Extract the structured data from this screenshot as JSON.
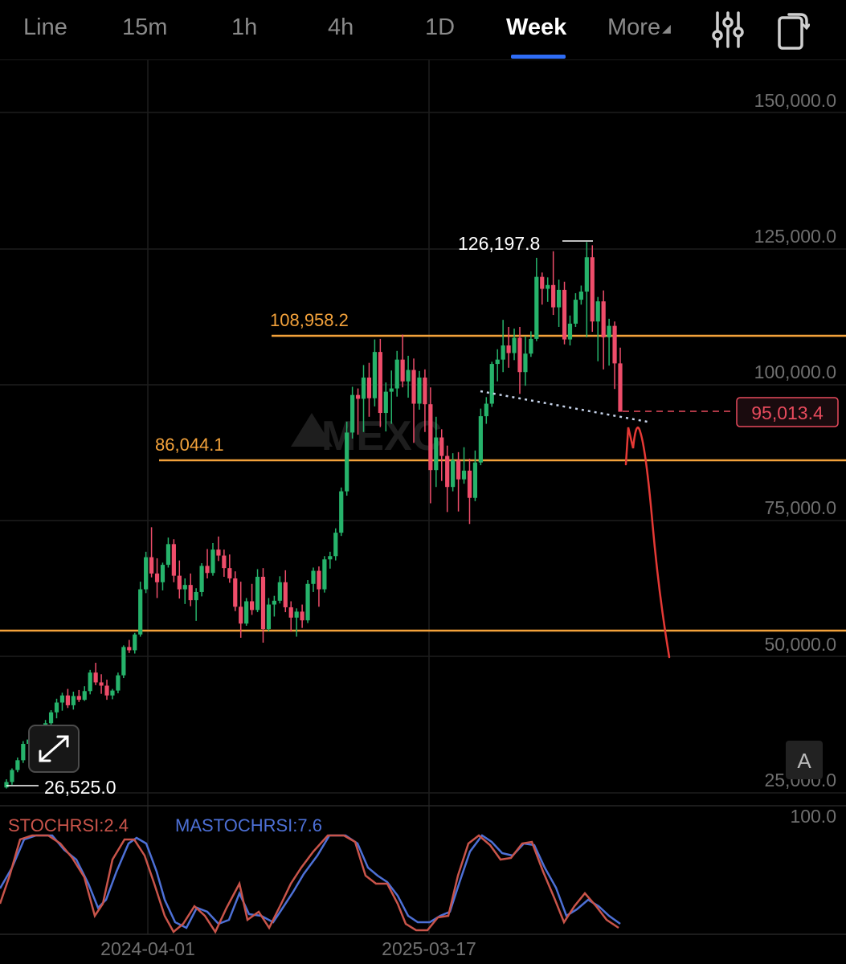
{
  "toolbar": {
    "tabs": [
      {
        "label": "Line",
        "active": false
      },
      {
        "label": "15m",
        "active": false
      },
      {
        "label": "1h",
        "active": false
      },
      {
        "label": "4h",
        "active": false
      },
      {
        "label": "1D",
        "active": false
      },
      {
        "label": "Week",
        "active": true
      },
      {
        "label": "More",
        "active": false
      }
    ],
    "icons": [
      "indicator-settings-icon",
      "rotate-screen-icon"
    ]
  },
  "chart": {
    "watermark": "MEXC",
    "price_axis": [
      "150,000.0",
      "125,000.0",
      "100,000.0",
      "75,000.0",
      "50,000.0",
      "25,000.0"
    ],
    "time_axis": [
      "2024-04-01",
      "2025-03-17"
    ],
    "high_label": "126,197.8",
    "low_label": "26,525.0",
    "current_price": "95,013.4",
    "levels": [
      "108,958.2",
      "86,044.1"
    ],
    "autoscale_label": "A",
    "colors": {
      "up": "#26b36b",
      "down": "#ee4d6a",
      "level": "#f3a23b",
      "drawing": "#e53935",
      "current": "#e84b5d"
    }
  },
  "indicator": {
    "stoch_label": "STOCHRSI:2.4",
    "ma_label": "MASTOCHRSI:7.6",
    "top_value": "100.0",
    "colors": {
      "stoch": "#c9544a",
      "ma": "#4d70d6"
    }
  },
  "chart_data": {
    "type": "candlestick",
    "interval": "Week",
    "y_ticks": [
      25000,
      50000,
      75000,
      100000,
      125000,
      150000
    ],
    "ylim": [
      25000,
      150000
    ],
    "x_labels": [
      "2024-04-01",
      "2025-03-17"
    ],
    "annotated_high": 126197.8,
    "annotated_low": 26525.0,
    "last_price": 95013.4,
    "horizontal_levels": [
      108958.2,
      86044.1,
      53500
    ],
    "stochrsi": 2.4,
    "mastochrsi": 7.6,
    "candles": [
      [
        26000,
        27500,
        25800,
        27000
      ],
      [
        27000,
        29500,
        26500,
        29200
      ],
      [
        29200,
        31500,
        28800,
        31000
      ],
      [
        31000,
        34500,
        30500,
        34000
      ],
      [
        34000,
        35500,
        32500,
        34800
      ],
      [
        34800,
        36500,
        33800,
        35600
      ],
      [
        35600,
        37200,
        34800,
        36900
      ],
      [
        36900,
        38400,
        36200,
        37800
      ],
      [
        37800,
        40200,
        37300,
        39800
      ],
      [
        39800,
        42300,
        38700,
        41600
      ],
      [
        41600,
        43400,
        40100,
        42900
      ],
      [
        42900,
        44100,
        40600,
        41100
      ],
      [
        41100,
        43600,
        40300,
        42800
      ],
      [
        42800,
        43900,
        41700,
        42100
      ],
      [
        42100,
        44600,
        41900,
        43700
      ],
      [
        43700,
        47600,
        43100,
        47100
      ],
      [
        47100,
        48900,
        44800,
        45300
      ],
      [
        45300,
        46800,
        43200,
        44700
      ],
      [
        44700,
        45800,
        42100,
        42900
      ],
      [
        42900,
        44100,
        42200,
        43800
      ],
      [
        43800,
        47100,
        43300,
        46600
      ],
      [
        46600,
        52100,
        46100,
        51800
      ],
      [
        51800,
        53100,
        50700,
        51200
      ],
      [
        51200,
        54400,
        50600,
        54100
      ],
      [
        54100,
        63800,
        53700,
        62400
      ],
      [
        62400,
        69300,
        61700,
        68300
      ],
      [
        68300,
        73800,
        64600,
        65300
      ],
      [
        65300,
        68100,
        60800,
        63700
      ],
      [
        63700,
        67300,
        62200,
        66900
      ],
      [
        66900,
        71900,
        66400,
        70700
      ],
      [
        70700,
        71600,
        63700,
        64900
      ],
      [
        64900,
        67700,
        60700,
        62400
      ],
      [
        62400,
        64400,
        59700,
        63200
      ],
      [
        63200,
        65300,
        59300,
        60400
      ],
      [
        60400,
        62600,
        56600,
        61900
      ],
      [
        61900,
        67200,
        61100,
        66700
      ],
      [
        66700,
        69800,
        64400,
        65400
      ],
      [
        65400,
        70900,
        64900,
        69700
      ],
      [
        69700,
        72100,
        67600,
        68600
      ],
      [
        68600,
        69700,
        64700,
        66300
      ],
      [
        66300,
        68800,
        63600,
        64400
      ],
      [
        64400,
        65700,
        58400,
        59200
      ],
      [
        59200,
        63800,
        53500,
        56100
      ],
      [
        56100,
        60800,
        55700,
        60200
      ],
      [
        60200,
        63400,
        57700,
        58600
      ],
      [
        58600,
        66100,
        58200,
        64700
      ],
      [
        64700,
        66300,
        52600,
        55100
      ],
      [
        55100,
        60800,
        54700,
        59600
      ],
      [
        59600,
        61200,
        57400,
        60300
      ],
      [
        60300,
        64800,
        59800,
        63700
      ],
      [
        63700,
        65900,
        58200,
        59100
      ],
      [
        59100,
        60200,
        54600,
        57200
      ],
      [
        57200,
        58900,
        53700,
        58300
      ],
      [
        58300,
        59600,
        55300,
        56700
      ],
      [
        56700,
        64100,
        56200,
        63400
      ],
      [
        63400,
        66400,
        61900,
        65800
      ],
      [
        65800,
        66600,
        59200,
        62400
      ],
      [
        62400,
        68500,
        61800,
        67900
      ],
      [
        67900,
        69300,
        66200,
        68500
      ],
      [
        68500,
        73600,
        67700,
        72800
      ],
      [
        72800,
        81100,
        72200,
        80400
      ],
      [
        80400,
        93200,
        79600,
        91200
      ],
      [
        91200,
        99600,
        90100,
        98100
      ],
      [
        98100,
        99300,
        90800,
        97400
      ],
      [
        97400,
        103600,
        91300,
        101300
      ],
      [
        101300,
        104000,
        94100,
        97500
      ],
      [
        97500,
        108300,
        96000,
        106000
      ],
      [
        106000,
        108400,
        92200,
        94800
      ],
      [
        94800,
        100400,
        91400,
        98700
      ],
      [
        98700,
        102600,
        92800,
        99300
      ],
      [
        99300,
        106200,
        97800,
        104600
      ],
      [
        104600,
        109200,
        99500,
        100600
      ],
      [
        100600,
        105300,
        97600,
        102700
      ],
      [
        102700,
        104800,
        89300,
        96500
      ],
      [
        96500,
        102500,
        95400,
        101300
      ],
      [
        101300,
        102800,
        91300,
        96400
      ],
      [
        96400,
        99500,
        78200,
        84300
      ],
      [
        84300,
        94100,
        81200,
        90300
      ],
      [
        90300,
        91800,
        82300,
        86900
      ],
      [
        86900,
        88800,
        76600,
        81200
      ],
      [
        81200,
        87400,
        80400,
        86100
      ],
      [
        86100,
        87600,
        76700,
        82600
      ],
      [
        82600,
        88500,
        81800,
        84200
      ],
      [
        84200,
        86400,
        74400,
        79200
      ],
      [
        79200,
        87900,
        78600,
        85700
      ],
      [
        85700,
        95600,
        85200,
        94200
      ],
      [
        94200,
        97700,
        92800,
        96500
      ],
      [
        96500,
        104200,
        95900,
        103800
      ],
      [
        103800,
        106500,
        100600,
        104600
      ],
      [
        104600,
        111900,
        102300,
        107200
      ],
      [
        107200,
        110600,
        103100,
        105800
      ],
      [
        105800,
        110300,
        104500,
        108600
      ],
      [
        108600,
        110600,
        98300,
        102300
      ],
      [
        102300,
        108900,
        99800,
        105700
      ],
      [
        105700,
        109800,
        105100,
        108400
      ],
      [
        108400,
        123300,
        108000,
        119800
      ],
      [
        119800,
        120600,
        114700,
        117600
      ],
      [
        117600,
        119700,
        115200,
        118300
      ],
      [
        118300,
        124500,
        112800,
        114200
      ],
      [
        114200,
        119300,
        110600,
        117400
      ],
      [
        117400,
        118900,
        107400,
        108300
      ],
      [
        108300,
        112700,
        107200,
        111200
      ],
      [
        111200,
        116800,
        110600,
        115600
      ],
      [
        115600,
        118200,
        114700,
        117100
      ],
      [
        117100,
        126200,
        108700,
        123400
      ],
      [
        123400,
        125600,
        109700,
        111600
      ],
      [
        111600,
        116100,
        104300,
        115300
      ],
      [
        115300,
        117300,
        102800,
        108700
      ],
      [
        108700,
        112100,
        103500,
        110800
      ],
      [
        110800,
        111600,
        99200,
        103900
      ],
      [
        103900,
        106800,
        95100,
        95013.4
      ]
    ]
  }
}
